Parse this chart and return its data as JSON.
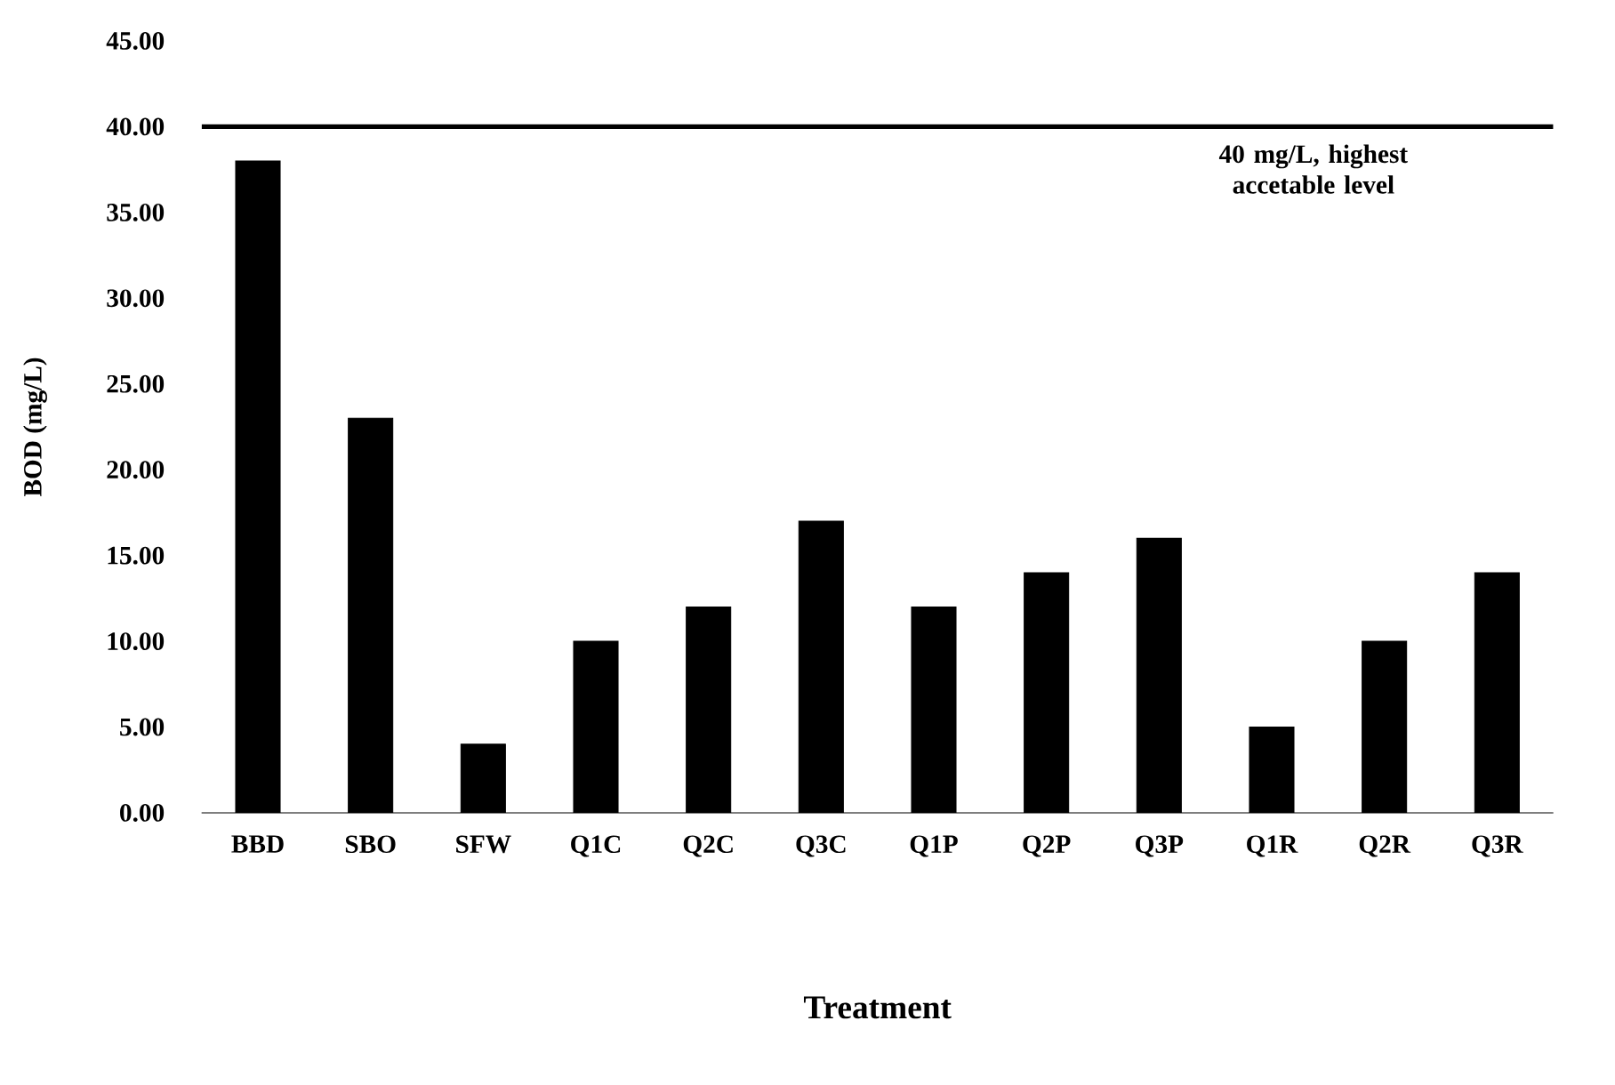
{
  "chart_data": {
    "type": "bar",
    "xlabel": "Treatment",
    "ylabel": "BOD  (mg/L)",
    "categories": [
      "BBD",
      "SBO",
      "SFW",
      "Q1C",
      "Q2C",
      "Q3C",
      "Q1P",
      "Q2P",
      "Q3P",
      "Q1R",
      "Q2R",
      "Q3R"
    ],
    "values": [
      38,
      23,
      4,
      10,
      12,
      17,
      12,
      14,
      16,
      5,
      10,
      14
    ],
    "color": "#000000",
    "ylim": [
      0,
      45
    ],
    "yticks": [
      {
        "value": 0,
        "label": "0.00"
      },
      {
        "value": 5,
        "label": "5.00"
      },
      {
        "value": 10,
        "label": "10.00"
      },
      {
        "value": 15,
        "label": "15.00"
      },
      {
        "value": 20,
        "label": "20.00"
      },
      {
        "value": 25,
        "label": "25.00"
      },
      {
        "value": 30,
        "label": "30.00"
      },
      {
        "value": 35,
        "label": "35.00"
      },
      {
        "value": 40,
        "label": "40.00"
      },
      {
        "value": 45,
        "label": "45.00"
      }
    ],
    "ref_lines": [
      {
        "axis": "y",
        "value": 40,
        "label": "40 mg/L, highest accetable level",
        "color": "#000000"
      }
    ],
    "grid": false
  }
}
